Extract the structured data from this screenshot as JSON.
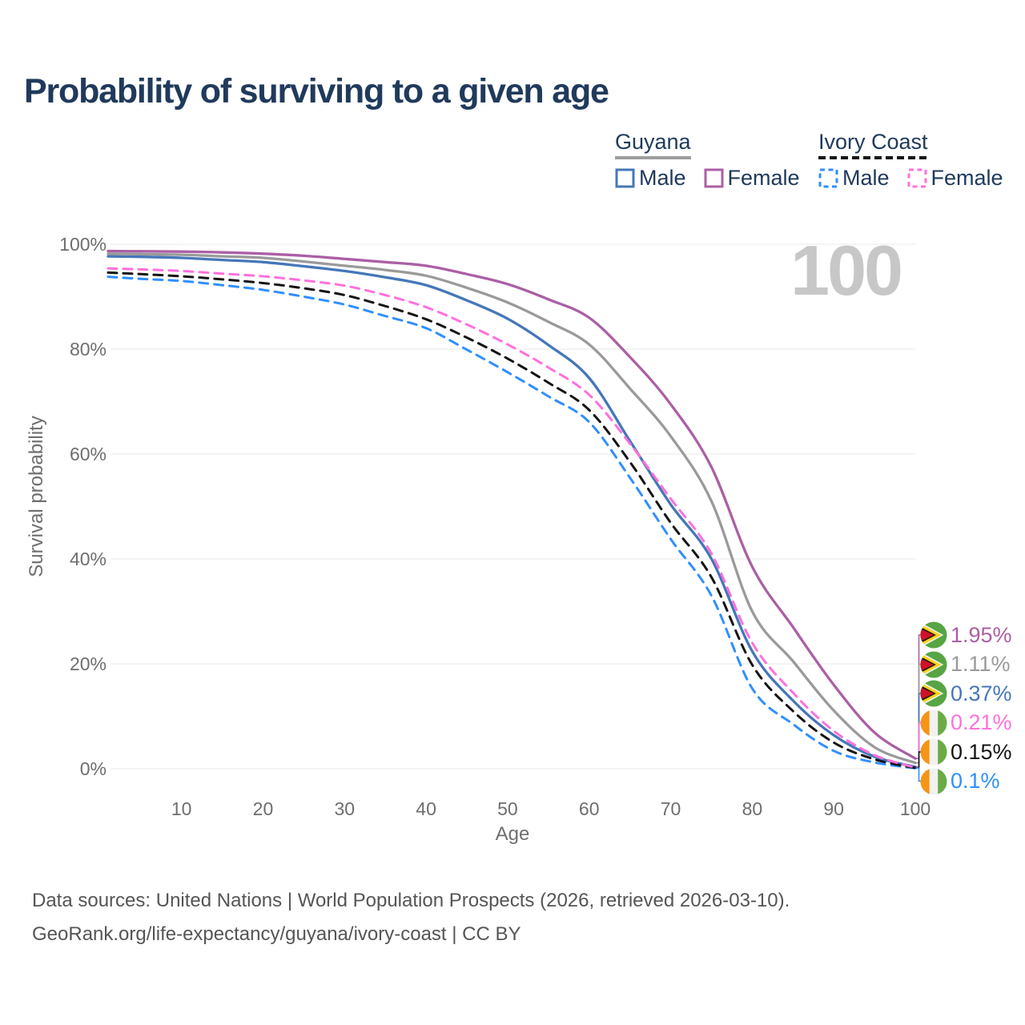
{
  "title": "Probability of surviving to a given age",
  "watermark": "100",
  "legend": {
    "groups": [
      {
        "country": "Guyana",
        "line_style": "solid",
        "underline_color": "#9e9e9e",
        "items": [
          {
            "label": "Male",
            "color": "#4577b8",
            "dashed": false
          },
          {
            "label": "Female",
            "color": "#ab5fa5",
            "dashed": false
          }
        ]
      },
      {
        "country": "Ivory Coast",
        "line_style": "dashed",
        "underline_color": "#161616",
        "items": [
          {
            "label": "Male",
            "color": "#2f8fff",
            "dashed": true
          },
          {
            "label": "Female",
            "color": "#ff70dd",
            "dashed": true
          }
        ]
      }
    ]
  },
  "chart_data": {
    "type": "line",
    "title": "Probability of surviving to a given age",
    "xlabel": "Age",
    "ylabel": "Survival probability",
    "xlim": [
      1,
      100
    ],
    "ylim": [
      0,
      100
    ],
    "x_ticks": [
      10,
      20,
      30,
      40,
      50,
      60,
      70,
      80,
      90,
      100
    ],
    "y_ticks": [
      0,
      20,
      40,
      60,
      80,
      100
    ],
    "y_tick_suffix": "%",
    "grid": "horizontal",
    "legend_position": "top-right",
    "x": [
      1,
      5,
      10,
      15,
      20,
      25,
      30,
      35,
      40,
      45,
      50,
      55,
      60,
      65,
      70,
      75,
      80,
      85,
      90,
      95,
      100
    ],
    "series": [
      {
        "id": "guyana-male",
        "name": "Guyana Male",
        "color": "#4577b8",
        "dashed": false,
        "values": [
          97.7,
          97.6,
          97.4,
          97.0,
          96.6,
          95.8,
          94.9,
          93.7,
          92.2,
          89.3,
          85.8,
          80.8,
          74.5,
          62.5,
          50.4,
          40.0,
          22.4,
          13.0,
          6.4,
          2.3,
          0.37
        ]
      },
      {
        "id": "guyana-both",
        "name": "Guyana Both sexes",
        "color": "#9a9a9a",
        "dashed": false,
        "values": [
          98.2,
          98.1,
          98.0,
          97.7,
          97.4,
          96.7,
          95.9,
          95.1,
          94.0,
          91.7,
          88.9,
          85.2,
          80.9,
          72.5,
          63.4,
          51.0,
          30.0,
          20.5,
          11.1,
          4.1,
          1.11
        ]
      },
      {
        "id": "guyana-female",
        "name": "Guyana Female",
        "color": "#ab5fa5",
        "dashed": false,
        "values": [
          98.7,
          98.65,
          98.6,
          98.45,
          98.2,
          97.8,
          97.2,
          96.6,
          95.9,
          94.3,
          92.4,
          89.5,
          86.0,
          78.5,
          69.5,
          57.5,
          38.5,
          27.0,
          16.0,
          6.9,
          1.95
        ]
      },
      {
        "id": "ivory-coast-male",
        "name": "Ivory Coast Male",
        "color": "#2f8fff",
        "dashed": true,
        "values": [
          93.8,
          93.4,
          93.0,
          92.2,
          91.3,
          90.0,
          88.5,
          86.3,
          84.0,
          79.9,
          75.6,
          71.0,
          66.1,
          55.5,
          43.8,
          33.0,
          15.3,
          8.5,
          3.4,
          1.2,
          0.1
        ]
      },
      {
        "id": "ivory-coast-both",
        "name": "Ivory Coast Both sexes",
        "color": "#141414",
        "dashed": true,
        "values": [
          94.6,
          94.3,
          93.9,
          93.3,
          92.6,
          91.6,
          90.3,
          88.2,
          85.7,
          82.2,
          78.2,
          73.6,
          68.4,
          58.5,
          46.9,
          36.5,
          19.8,
          11.0,
          5.0,
          1.8,
          0.15
        ]
      },
      {
        "id": "ivory-coast-female",
        "name": "Ivory Coast Female",
        "color": "#ff70dd",
        "dashed": true,
        "values": [
          95.4,
          95.2,
          94.9,
          94.4,
          93.9,
          93.1,
          92.1,
          90.3,
          88.0,
          84.7,
          80.9,
          76.5,
          71.3,
          62.0,
          51.5,
          41.0,
          24.0,
          14.5,
          7.2,
          2.6,
          0.21
        ]
      }
    ],
    "end_labels": [
      {
        "label": "1.95%",
        "value": 1.95,
        "color": "#ab5fa5",
        "flag": "guyana"
      },
      {
        "label": "1.11%",
        "value": 1.11,
        "color": "#9a9a9a",
        "flag": "guyana"
      },
      {
        "label": "0.37%",
        "value": 0.37,
        "color": "#4577b8",
        "flag": "guyana"
      },
      {
        "label": "0.21%",
        "value": 0.21,
        "color": "#ff70dd",
        "flag": "ivory-coast"
      },
      {
        "label": "0.15%",
        "value": 0.15,
        "color": "#141414",
        "flag": "ivory-coast"
      },
      {
        "label": "0.1%",
        "value": 0.1,
        "color": "#2f8fff",
        "flag": "ivory-coast"
      }
    ]
  },
  "footer": {
    "line1": "Data sources: United Nations | World Population Prospects (2026, retrieved 2026-03-10).",
    "line2": "GeoRank.org/life-expectancy/guyana/ivory-coast | CC BY"
  }
}
